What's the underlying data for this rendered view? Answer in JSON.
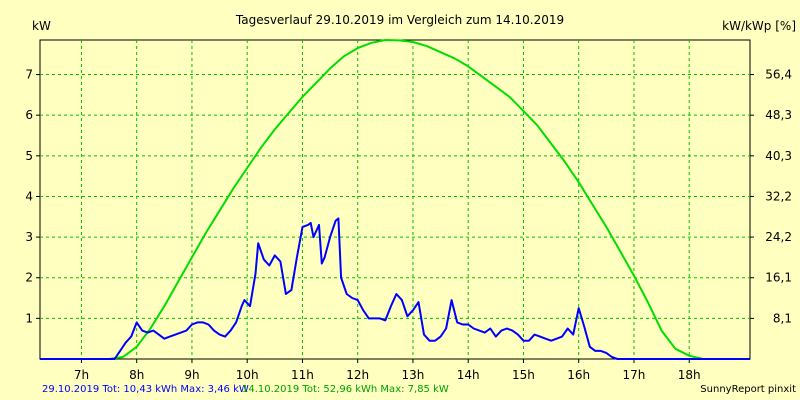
{
  "chart_data": {
    "type": "line",
    "title": "Tagesverlauf 29.10.2019 im Vergleich zum 14.10.2019",
    "ylabel_left": "kW",
    "ylabel_right": "kW/kWp [%]",
    "xlim": [
      6.25,
      19.1
    ],
    "ylim": [
      0,
      7.85
    ],
    "y_ticks_left": [
      "1",
      "2",
      "3",
      "4",
      "5",
      "6",
      "7"
    ],
    "y_ticks_right": [
      "8,1",
      "16,1",
      "24,2",
      "32,2",
      "40,3",
      "48,3",
      "56,4"
    ],
    "x_ticks": [
      "7h",
      "8h",
      "9h",
      "10h",
      "11h",
      "12h",
      "13h",
      "14h",
      "15h",
      "16h",
      "17h",
      "18h"
    ],
    "grid": true,
    "series": [
      {
        "name": "14.10.2019",
        "color": "#00dd00",
        "x": [
          6.25,
          7.5,
          7.75,
          8.0,
          8.25,
          8.5,
          8.75,
          9.0,
          9.25,
          9.5,
          9.75,
          10.0,
          10.25,
          10.5,
          10.75,
          11.0,
          11.25,
          11.5,
          11.75,
          12.0,
          12.25,
          12.5,
          12.75,
          13.0,
          13.25,
          13.5,
          13.75,
          14.0,
          14.25,
          14.5,
          14.75,
          15.0,
          15.25,
          15.5,
          15.75,
          16.0,
          16.25,
          16.5,
          16.75,
          17.0,
          17.25,
          17.5,
          17.75,
          18.0,
          18.25,
          18.5,
          19.1
        ],
        "values": [
          0,
          0,
          0.05,
          0.3,
          0.75,
          1.3,
          1.9,
          2.5,
          3.1,
          3.65,
          4.2,
          4.7,
          5.2,
          5.65,
          6.05,
          6.45,
          6.8,
          7.15,
          7.45,
          7.65,
          7.78,
          7.85,
          7.84,
          7.8,
          7.7,
          7.55,
          7.4,
          7.2,
          6.95,
          6.7,
          6.45,
          6.1,
          5.75,
          5.3,
          4.85,
          4.35,
          3.8,
          3.25,
          2.65,
          2.05,
          1.4,
          0.7,
          0.25,
          0.08,
          0,
          0,
          0
        ]
      },
      {
        "name": "29.10.2019",
        "color": "#0000ff",
        "x": [
          6.25,
          7.6,
          7.7,
          7.8,
          7.9,
          8.0,
          8.1,
          8.2,
          8.3,
          8.4,
          8.5,
          8.6,
          8.7,
          8.8,
          8.9,
          9.0,
          9.1,
          9.2,
          9.3,
          9.4,
          9.5,
          9.6,
          9.7,
          9.8,
          9.9,
          9.95,
          10.05,
          10.15,
          10.2,
          10.3,
          10.4,
          10.5,
          10.6,
          10.7,
          10.8,
          10.9,
          11.0,
          11.1,
          11.15,
          11.2,
          11.3,
          11.35,
          11.4,
          11.5,
          11.6,
          11.65,
          11.7,
          11.8,
          11.9,
          12.0,
          12.1,
          12.2,
          12.3,
          12.4,
          12.5,
          12.6,
          12.7,
          12.8,
          12.9,
          13.0,
          13.1,
          13.2,
          13.3,
          13.4,
          13.5,
          13.6,
          13.7,
          13.8,
          13.9,
          14.0,
          14.1,
          14.2,
          14.3,
          14.4,
          14.5,
          14.6,
          14.7,
          14.8,
          14.9,
          15.0,
          15.1,
          15.2,
          15.3,
          15.4,
          15.5,
          15.6,
          15.7,
          15.8,
          15.9,
          16.0,
          16.1,
          16.2,
          16.3,
          16.4,
          16.5,
          16.6,
          16.7,
          16.8,
          19.1
        ],
        "values": [
          0,
          0,
          0.2,
          0.4,
          0.55,
          0.9,
          0.7,
          0.65,
          0.7,
          0.6,
          0.5,
          0.55,
          0.6,
          0.65,
          0.7,
          0.85,
          0.9,
          0.9,
          0.85,
          0.7,
          0.6,
          0.55,
          0.7,
          0.9,
          1.3,
          1.45,
          1.3,
          2.1,
          2.85,
          2.45,
          2.3,
          2.55,
          2.4,
          1.6,
          1.7,
          2.5,
          3.25,
          3.3,
          3.35,
          3.0,
          3.3,
          2.35,
          2.5,
          3.0,
          3.4,
          3.46,
          2.0,
          1.6,
          1.5,
          1.45,
          1.2,
          1.0,
          1.0,
          1.0,
          0.95,
          1.3,
          1.6,
          1.45,
          1.05,
          1.2,
          1.4,
          0.6,
          0.45,
          0.45,
          0.55,
          0.75,
          1.45,
          0.9,
          0.85,
          0.85,
          0.75,
          0.7,
          0.65,
          0.75,
          0.55,
          0.7,
          0.75,
          0.7,
          0.6,
          0.45,
          0.45,
          0.6,
          0.55,
          0.5,
          0.45,
          0.5,
          0.55,
          0.75,
          0.6,
          1.25,
          0.8,
          0.3,
          0.2,
          0.2,
          0.15,
          0.05,
          0,
          0,
          0
        ]
      }
    ],
    "footer": {
      "left_blue": "29.10.2019 Tot: 10,43 kWh Max: 3,46 kW",
      "left_green": "14.10.2019 Tot: 52,96 kWh Max: 7,85 kW",
      "right": "SunnyReport pinxit"
    }
  }
}
